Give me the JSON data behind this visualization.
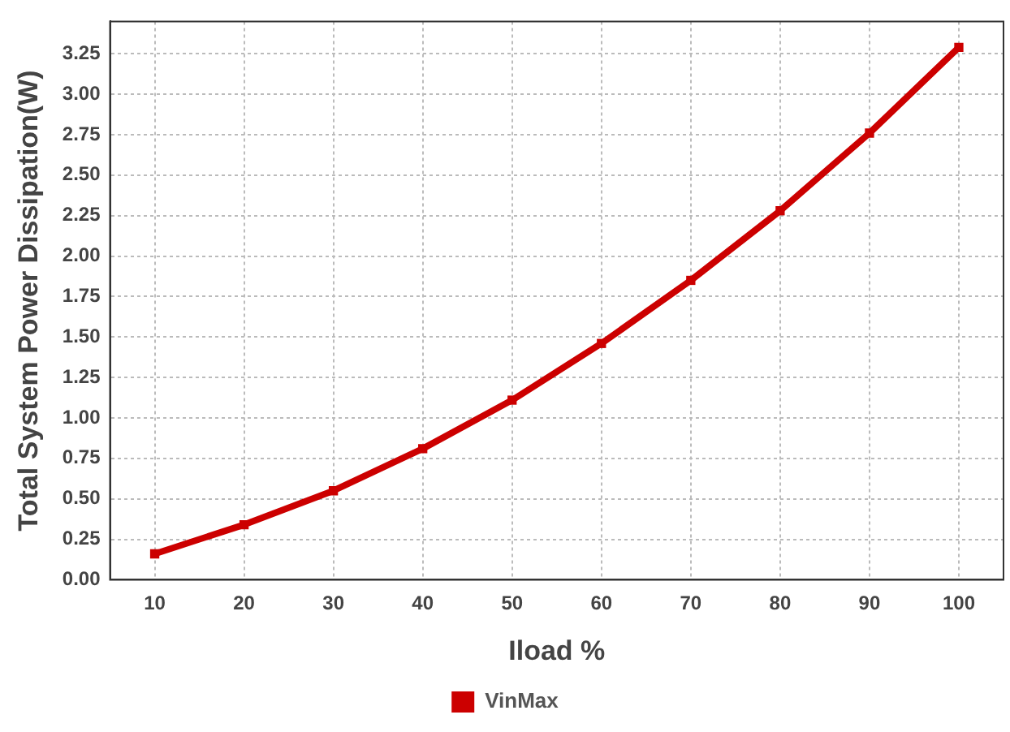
{
  "chart_data": {
    "type": "line",
    "xlabel": "Iload %",
    "ylabel": "Total System Power Dissipation(W)",
    "categories": [
      "10",
      "20",
      "30",
      "40",
      "50",
      "60",
      "70",
      "80",
      "90",
      "100"
    ],
    "series": [
      {
        "name": "VinMax",
        "color": "#cc0000",
        "values": [
          0.16,
          0.34,
          0.55,
          0.81,
          1.11,
          1.46,
          1.85,
          2.28,
          2.76,
          3.29
        ]
      }
    ],
    "ylim": [
      0,
      3.45
    ],
    "yticks": [
      {
        "value": 0,
        "label": "0.00"
      },
      {
        "value": 0.25,
        "label": "0.25"
      },
      {
        "value": 0.5,
        "label": "0.50"
      },
      {
        "value": 0.75,
        "label": "0.75"
      },
      {
        "value": 1,
        "label": "1.00"
      },
      {
        "value": 1.25,
        "label": "1.25"
      },
      {
        "value": 1.5,
        "label": "1.50"
      },
      {
        "value": 1.75,
        "label": "1.75"
      },
      {
        "value": 2,
        "label": "2.00"
      },
      {
        "value": 2.25,
        "label": "2.25"
      },
      {
        "value": 2.5,
        "label": "2.50"
      },
      {
        "value": 2.75,
        "label": "2.75"
      },
      {
        "value": 3,
        "label": "3.00"
      },
      {
        "value": 3.25,
        "label": "3.25"
      }
    ],
    "grid": true,
    "legend": "bottom",
    "marker": "square",
    "line_style": "solid"
  }
}
